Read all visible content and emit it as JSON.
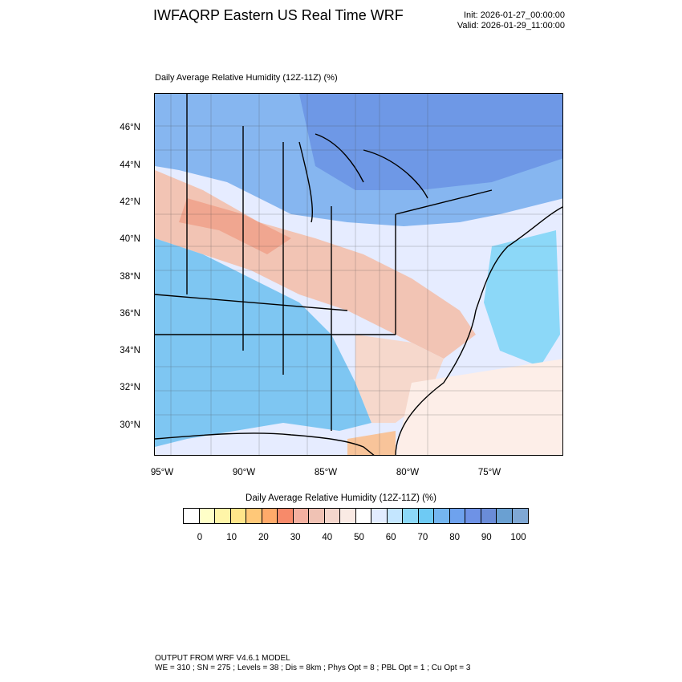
{
  "header": {
    "title": "IWFAQRP Eastern US Real Time WRF",
    "init": "Init: 2026-01-27_00:00:00",
    "valid": "Valid: 2026-01-29_11:00:00"
  },
  "map": {
    "subtitle": "Daily Average Relative Humidity (12Z-11Z)   (%)",
    "lat_labels": [
      "46°N",
      "44°N",
      "42°N",
      "40°N",
      "38°N",
      "36°N",
      "34°N",
      "32°N",
      "30°N"
    ],
    "lon_labels": [
      "95°W",
      "90°W",
      "85°W",
      "80°W",
      "75°W"
    ]
  },
  "colorbar": {
    "title": "Daily Average Relative Humidity (12Z-11Z)  (%)",
    "ticks": [
      "0",
      "10",
      "20",
      "30",
      "40",
      "50",
      "60",
      "70",
      "80",
      "90",
      "100"
    ],
    "colors": [
      "#ffffff",
      "#ffffc8",
      "#fff5a8",
      "#ffe58a",
      "#ffc878",
      "#ffaa6a",
      "#f78a6a",
      "#f3b0a0",
      "#f0c2b4",
      "#f4d6cc",
      "#faeae4",
      "#ffffff",
      "#e2ecff",
      "#c4e6ff",
      "#8cd8f8",
      "#6ecaf4",
      "#74b6f0",
      "#6ea2ee",
      "#6e92e6",
      "#6a8cd8",
      "#6aa0d2",
      "#80a8d4"
    ]
  },
  "footer": {
    "line1": "OUTPUT FROM WRF V4.6.1 MODEL",
    "line2": "WE = 310 ; SN = 275 ; Levels = 38 ; Dis = 8km ; Phys Opt = 8 ; PBL Opt = 1 ; Cu Opt = 3"
  }
}
